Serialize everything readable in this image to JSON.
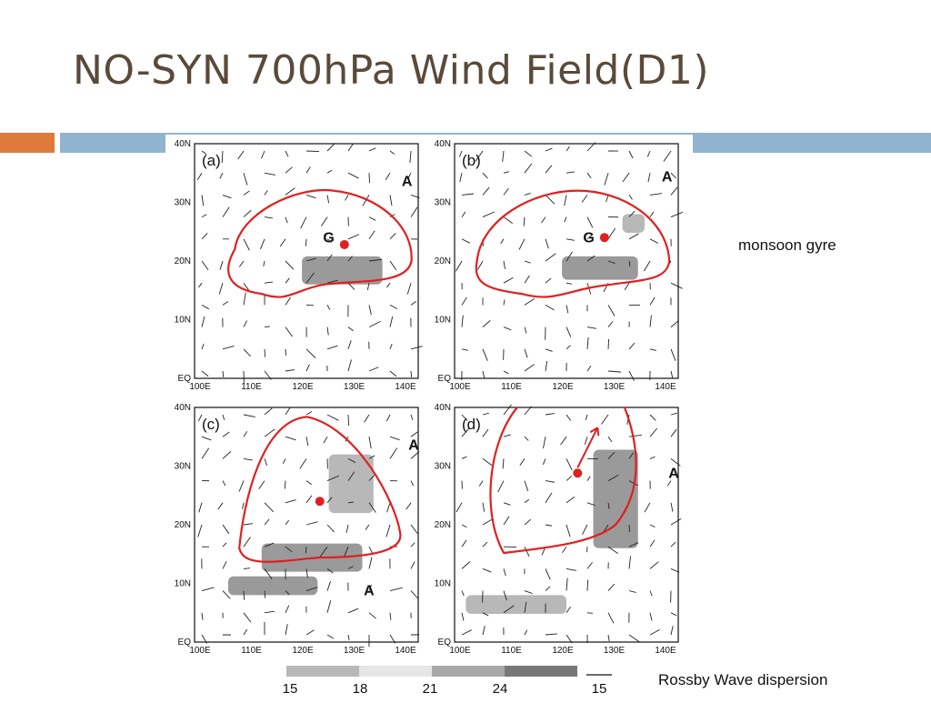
{
  "slide": {
    "title": "NO-SYN 700hPa Wind Field(D1)"
  },
  "annotations": {
    "monsoon_gyre": "monsoon gyre",
    "rossby_wave": "Rossby Wave dispersion"
  },
  "panels": [
    {
      "label": "(a)",
      "markers": [
        "G",
        "A"
      ]
    },
    {
      "label": "(b)",
      "markers": [
        "G",
        "A"
      ]
    },
    {
      "label": "(c)",
      "markers": [
        "A",
        "A"
      ]
    },
    {
      "label": "(d)",
      "markers": [
        "A"
      ]
    }
  ],
  "axes": {
    "x_ticks": [
      "100E",
      "110E",
      "120E",
      "130E",
      "140E"
    ],
    "y_ticks": [
      "EQ",
      "10N",
      "20N",
      "30N",
      "40N"
    ]
  },
  "legend": {
    "ticks": [
      "15",
      "18",
      "21",
      "24"
    ],
    "ref_vector": "15"
  },
  "colors": {
    "title": "#5a4a3a",
    "accent_orange": "#e07a3a",
    "accent_blue": "#90b4d0",
    "gyre_outline": "#e02020",
    "shade_light": "#c8c8c8",
    "shade_mid": "#a0a0a0",
    "shade_dark": "#787878"
  }
}
